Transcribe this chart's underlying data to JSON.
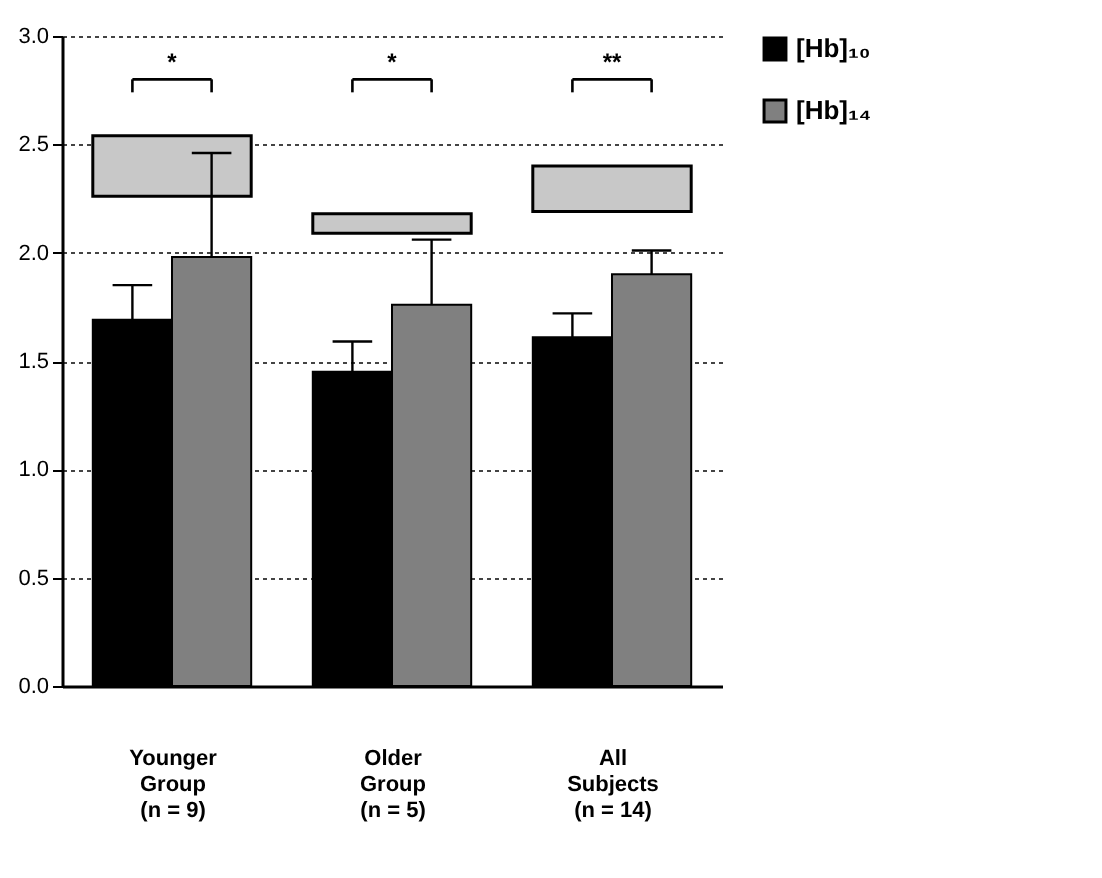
{
  "chart_data": {
    "type": "bar",
    "categories": [
      "Younger Group (n = 9)",
      "Older Group (n = 5)",
      "All Subjects (n = 14)"
    ],
    "series": [
      {
        "name": "[Hb]₁₀",
        "color": "#000000",
        "values": [
          1.69,
          1.45,
          1.61
        ],
        "errors": [
          [
            1.69,
            1.85
          ],
          [
            1.45,
            1.59
          ],
          [
            1.61,
            1.72
          ]
        ]
      },
      {
        "name": "[Hb]₁₄",
        "color": "#808080",
        "values": [
          1.98,
          1.76,
          1.9
        ],
        "errors": [
          [
            1.98,
            2.46
          ],
          [
            1.76,
            2.06
          ],
          [
            1.9,
            2.01
          ]
        ]
      },
      {
        "color": "#c8c8c8",
        "base": [
          2.26,
          2.09,
          2.19
        ],
        "values": [
          0.28,
          0.09,
          0.21
        ]
      }
    ],
    "ylim": [
      0,
      3
    ],
    "yticks": [
      {
        "value": 0,
        "label": "0.0"
      },
      {
        "value": 0.5,
        "label": "0.5"
      },
      {
        "value": 1,
        "label": "1.0"
      },
      {
        "value": 1.5,
        "label": "1.5"
      },
      {
        "value": 2,
        "label": "2.0"
      },
      {
        "value": 2.5,
        "label": "2.5"
      },
      {
        "value": 3,
        "label": "3.0"
      }
    ],
    "grid": "y",
    "legend": "right",
    "annotations": [
      "*",
      "*",
      "**"
    ]
  }
}
